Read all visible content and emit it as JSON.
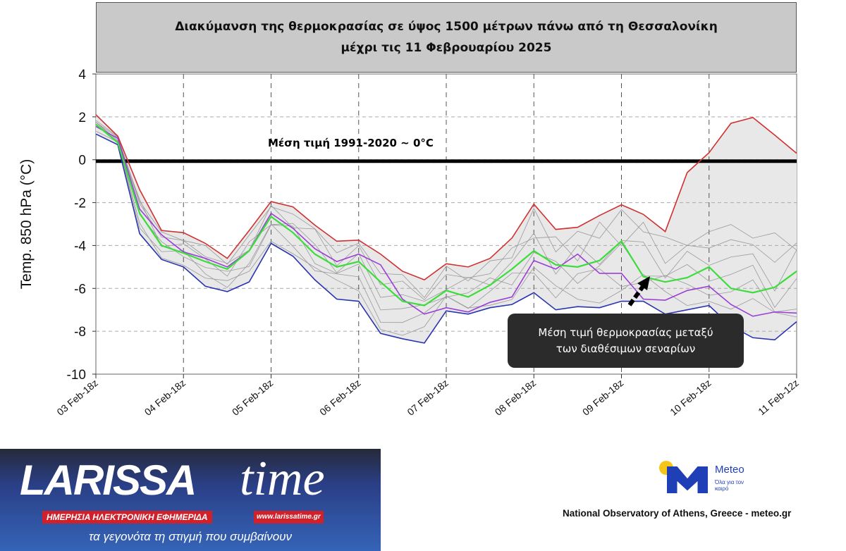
{
  "chart_data": {
    "type": "line",
    "title": [
      "Διακύμανση της θερμοκρασίας σε ύψος 1500 μέτρων πάνω από τη Θεσσαλονίκη",
      "μέχρι τις 11 Φεβρουαρίου 2025"
    ],
    "ylabel": "Temp. 850 hPa (°C)",
    "xlabel": "",
    "ylim": [
      -10,
      4
    ],
    "yticks": [
      "4",
      "2",
      "0",
      "-2",
      "-4",
      "-6",
      "-8",
      "-10"
    ],
    "ytick_values": [
      4,
      2,
      0,
      -2,
      -4,
      -6,
      -8,
      -10
    ],
    "xticks": [
      "03 Feb-18z",
      "04 Feb-18z",
      "05 Feb-18z",
      "06 Feb-18z",
      "07 Feb-18z",
      "08 Feb-18z",
      "09 Feb-18z",
      "10 Feb-18z",
      "11 Feb-12z"
    ],
    "xtick_index": [
      0,
      4,
      8,
      12,
      16,
      20,
      24,
      28,
      32
    ],
    "grid": true,
    "reference_line": {
      "value": 0,
      "label": "Μέση τιμή 1991-2020  ~ 0°C"
    },
    "series": [
      {
        "name": "max",
        "color": "#d03030",
        "values": [
          2.1,
          1.1,
          -1.4,
          -3.3,
          -3.4,
          -3.9,
          -4.6,
          -3.3,
          -1.95,
          -2.2,
          -3.05,
          -3.8,
          -3.75,
          -4.4,
          -5.2,
          -5.6,
          -4.85,
          -5.0,
          -4.6,
          -3.65,
          -2.07,
          -3.25,
          -3.15,
          -2.6,
          -2.1,
          -2.55,
          -3.35,
          -0.6,
          0.33,
          1.7,
          1.97,
          1.15,
          0.3
        ]
      },
      {
        "name": "min",
        "color": "#2b34b0",
        "values": [
          1.2,
          0.7,
          -3.45,
          -4.65,
          -5.0,
          -5.9,
          -6.15,
          -5.7,
          -3.9,
          -4.5,
          -5.6,
          -6.5,
          -6.6,
          -8.1,
          -8.35,
          -8.55,
          -7.05,
          -7.2,
          -6.9,
          -6.75,
          -6.2,
          -7.0,
          -6.85,
          -6.9,
          -6.6,
          -6.6,
          -7.2,
          -7.0,
          -6.8,
          -7.75,
          -8.3,
          -8.4,
          -7.55
        ]
      },
      {
        "name": "scenario",
        "color": "#9b3fd6",
        "values": [
          1.55,
          1.0,
          -2.3,
          -3.5,
          -4.3,
          -4.6,
          -5.0,
          -4.25,
          -2.5,
          -3.2,
          -4.15,
          -4.75,
          -4.4,
          -4.9,
          -6.5,
          -7.2,
          -6.9,
          -7.1,
          -6.65,
          -6.4,
          -4.7,
          -5.1,
          -4.4,
          -5.3,
          -5.3,
          -6.5,
          -6.55,
          -6.1,
          -5.9,
          -6.75,
          -7.3,
          -7.1,
          -7.15
        ]
      },
      {
        "name": "mean",
        "color": "#3ddc3d",
        "values": [
          1.65,
          0.8,
          -2.5,
          -4.0,
          -4.35,
          -4.75,
          -5.1,
          -4.25,
          -2.65,
          -3.4,
          -4.4,
          -5.0,
          -4.75,
          -5.7,
          -6.6,
          -6.8,
          -6.1,
          -6.4,
          -5.85,
          -5.1,
          -4.25,
          -4.9,
          -5.0,
          -4.7,
          -3.8,
          -5.45,
          -5.7,
          -5.5,
          -5.0,
          -6.0,
          -6.2,
          -5.95,
          -5.2
        ]
      }
    ],
    "annotation": [
      "Μέση τιμή θερμοκρασίας μεταξύ",
      "των διαθέσιμων σεναρίων"
    ]
  },
  "logo": {
    "name_main": "LARISSA",
    "name_script": "time",
    "subtitle": "ΗΜΕΡΗΣΙΑ ΗΛΕΚΤΡΟΝΙΚΗ ΕΦΗΜΕΡΙΔΑ",
    "url": "www.larissatime.gr",
    "slogan": "τα γεγονότα τη στιγμή που συμβαίνουν"
  },
  "meteo": {
    "name": "Meteo",
    "tagline": "Όλα για τον καιρό",
    "credit": "National Observatory of Athens, Greece - meteo.gr"
  }
}
